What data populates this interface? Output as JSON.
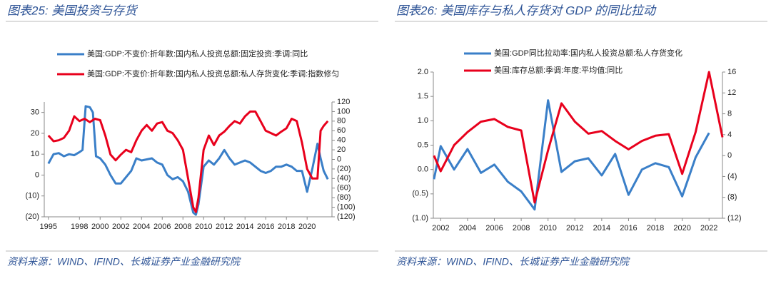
{
  "chart_data": [
    {
      "type": "line",
      "title": "图表25: 美国投资与存货",
      "source": "资料来源：WIND、IFIND、长城证券产业金融研究院",
      "xlim": [
        1994.6,
        2022.4
      ],
      "xticks": [
        1995,
        1998,
        2000,
        2002,
        2004,
        2006,
        2008,
        2010,
        2012,
        2014,
        2016,
        2018,
        2020
      ],
      "ylim": [
        -20,
        35
      ],
      "yticks": [
        {
          "value": -20,
          "label": "(20)"
        },
        {
          "value": -10,
          "label": "(10)"
        },
        0,
        10,
        20,
        30
      ],
      "y2lim": [
        -120,
        120
      ],
      "y2ticks": [
        {
          "value": -120,
          "label": "(120)"
        },
        {
          "value": -100,
          "label": "(100)"
        },
        {
          "value": -80,
          "label": "(80)"
        },
        {
          "value": -60,
          "label": "(60)"
        },
        {
          "value": -40,
          "label": "(40)"
        },
        {
          "value": -20,
          "label": "(20)"
        },
        0,
        20,
        40,
        60,
        80,
        100,
        120
      ],
      "series": [
        {
          "name": "美国:GDP:不变价:折年数:国内私人投资总额:固定投资:季调:同比",
          "color": "#3a7fc8",
          "x": [
            1995,
            1995.5,
            1996,
            1996.5,
            1997,
            1997.5,
            1998,
            1998.3,
            1998.6,
            1999,
            1999.3,
            1999.6,
            2000,
            2000.5,
            2001,
            2001.5,
            2002,
            2002.5,
            2003,
            2003.5,
            2004,
            2004.5,
            2005,
            2005.5,
            2006,
            2006.5,
            2007,
            2007.5,
            2008,
            2008.5,
            2009,
            2009.25,
            2009.5,
            2010,
            2010.5,
            2011,
            2011.5,
            2012,
            2012.5,
            2013,
            2013.5,
            2014,
            2014.5,
            2015,
            2015.5,
            2016,
            2016.5,
            2017,
            2017.5,
            2018,
            2018.5,
            2019,
            2019.5,
            2020,
            2020.5,
            2021,
            2021.3,
            2021.6,
            2022
          ],
          "values": [
            5.5,
            10,
            10.5,
            9,
            10,
            9.5,
            11,
            12,
            33,
            32.5,
            30,
            9,
            8,
            5,
            0,
            -4,
            -4,
            -1,
            2,
            8,
            7,
            7.5,
            8,
            6,
            5,
            0,
            -2,
            -1,
            -3,
            -8,
            -18,
            -19,
            -14,
            4,
            7,
            5,
            8,
            12,
            8,
            5,
            6,
            7,
            6,
            4,
            2,
            1,
            2,
            4,
            4,
            5,
            4,
            2,
            2,
            -8,
            3,
            15,
            8,
            2,
            -2
          ]
        },
        {
          "name": "美国:GDP:不变价:折年数:国内私人投资总额:私人存货变化:季调:指数修匀",
          "color": "#e8001c",
          "axis": "y2",
          "x": [
            1995,
            1995.5,
            1996,
            1996.5,
            1997,
            1997.5,
            1998,
            1998.5,
            1999,
            1999.5,
            2000,
            2000.5,
            2001,
            2001.5,
            2002,
            2002.5,
            2003,
            2003.5,
            2004,
            2004.5,
            2005,
            2005.5,
            2006,
            2006.5,
            2007,
            2007.5,
            2008,
            2008.5,
            2009,
            2009.25,
            2009.5,
            2010,
            2010.5,
            2011,
            2011.5,
            2012,
            2012.5,
            2013,
            2013.5,
            2014,
            2014.5,
            2015,
            2015.5,
            2016,
            2016.5,
            2017,
            2017.5,
            2018,
            2018.5,
            2019,
            2019.5,
            2020,
            2020.5,
            2021,
            2021.3,
            2021.6,
            2022
          ],
          "values": [
            50,
            38,
            40,
            45,
            60,
            90,
            80,
            85,
            78,
            85,
            82,
            50,
            10,
            -2,
            10,
            20,
            15,
            40,
            60,
            72,
            60,
            75,
            78,
            60,
            55,
            40,
            20,
            -40,
            -100,
            -110,
            -80,
            20,
            50,
            30,
            50,
            58,
            70,
            80,
            75,
            90,
            100,
            100,
            80,
            60,
            55,
            50,
            58,
            65,
            85,
            80,
            35,
            -20,
            -40,
            -40,
            60,
            70,
            80
          ]
        }
      ]
    },
    {
      "type": "line",
      "title": "图表26: 美国库存与私人存货对 GDP 的同比拉动",
      "source": "资料来源：WIND、IFIND、长城证券产业金融研究院",
      "xlim": [
        2001.45,
        2023.0
      ],
      "xticks": [
        2002,
        2004,
        2006,
        2008,
        2010,
        2012,
        2014,
        2016,
        2018,
        2020,
        2022
      ],
      "ylim": [
        -1,
        2
      ],
      "yticks": [
        {
          "value": -1,
          "label": "(1.0)"
        },
        {
          "value": -0.5,
          "label": "(0.5)"
        },
        {
          "value": 0,
          "label": "0.0"
        },
        0.5,
        {
          "value": 1,
          "label": "1.0"
        },
        1.5,
        {
          "value": 2,
          "label": "2.0"
        }
      ],
      "y2lim": [
        -12,
        16
      ],
      "y2ticks": [
        {
          "value": -12,
          "label": "(12)"
        },
        {
          "value": -8,
          "label": "(8)"
        },
        {
          "value": -4,
          "label": "(4)"
        },
        0,
        4,
        8,
        12,
        16
      ],
      "series": [
        {
          "name": "美国:GDP同比拉动率:国内私人投资总额:私人存货变化",
          "color": "#3a7fc8",
          "x": [
            2001.5,
            2002,
            2003,
            2004,
            2005,
            2006,
            2007,
            2008,
            2009,
            2010,
            2011,
            2012,
            2013,
            2014,
            2015,
            2016,
            2017,
            2018,
            2019,
            2020,
            2021,
            2022
          ],
          "values": [
            -0.2,
            0.48,
            0,
            0.42,
            -0.07,
            0.1,
            -0.25,
            -0.45,
            -0.82,
            1.42,
            -0.05,
            0.17,
            0.23,
            -0.12,
            0.32,
            -0.52,
            0,
            0.13,
            0.05,
            -0.55,
            0.25,
            0.75
          ]
        },
        {
          "name": "美国:库存总额:季调:年度:平均值:同比",
          "color": "#e8001c",
          "axis": "y2",
          "x": [
            2001.5,
            2002,
            2003,
            2004,
            2005,
            2006,
            2007,
            2008,
            2009,
            2010,
            2011,
            2012,
            2013,
            2014,
            2015,
            2016,
            2017,
            2018,
            2019,
            2020,
            2021,
            2022,
            2023
          ],
          "values": [
            0,
            -3,
            2,
            4.5,
            6.5,
            7,
            5.5,
            4.8,
            -9,
            1,
            10,
            6.5,
            4.2,
            4.7,
            2.8,
            1.2,
            2.8,
            3.8,
            4.1,
            -3.5,
            4.5,
            16,
            3.5
          ]
        }
      ]
    }
  ]
}
